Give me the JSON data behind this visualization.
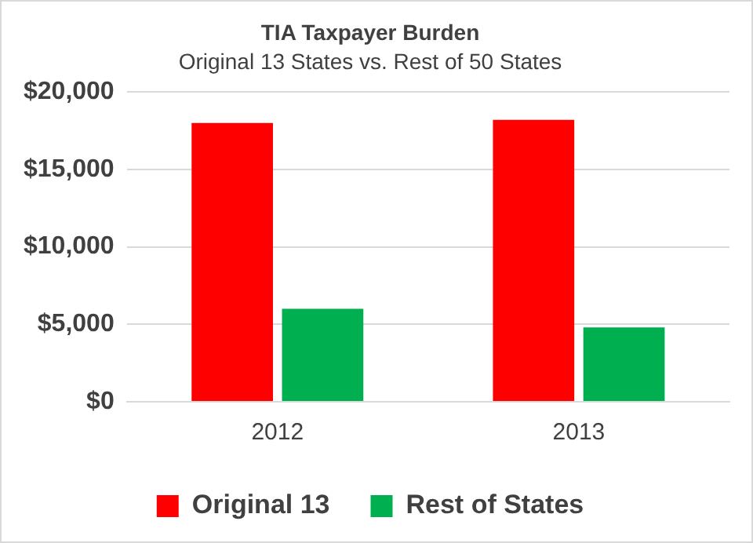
{
  "chart_data": {
    "type": "bar",
    "title": "TIA Taxpayer Burden",
    "subtitle": "Original 13 States vs. Rest of 50 States",
    "categories": [
      "2012",
      "2013"
    ],
    "series": [
      {
        "name": "Original 13",
        "color": "#ff0000",
        "values": [
          18000,
          18200
        ]
      },
      {
        "name": "Rest of States",
        "color": "#00b050",
        "values": [
          6000,
          4800
        ]
      }
    ],
    "ylim": [
      0,
      20000
    ],
    "yticks": [
      {
        "value": 0,
        "label": "$0"
      },
      {
        "value": 5000,
        "label": "$5,000"
      },
      {
        "value": 10000,
        "label": "$10,000"
      },
      {
        "value": 15000,
        "label": "$15,000"
      },
      {
        "value": 20000,
        "label": "$20,000"
      }
    ],
    "grid": "y",
    "legend": "bottom"
  }
}
